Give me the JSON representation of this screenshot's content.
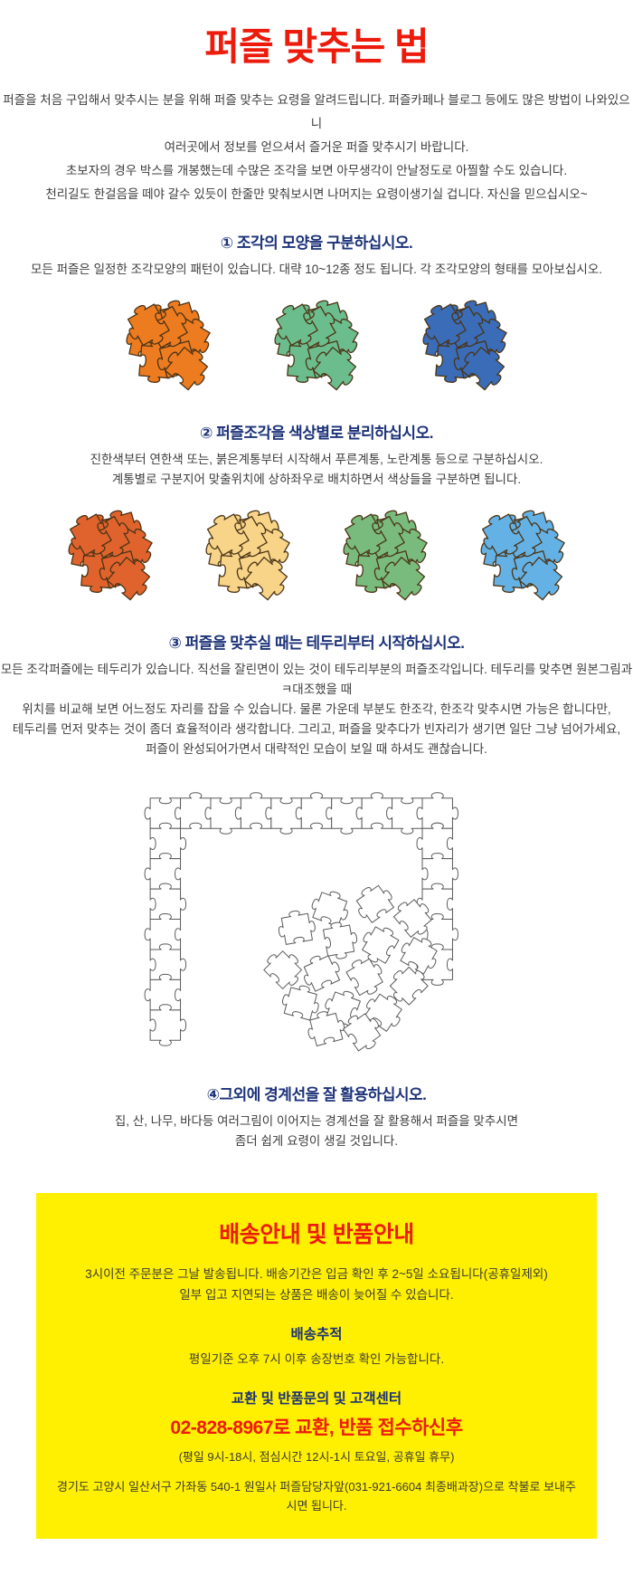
{
  "page": {
    "title": "퍼즐 맞추는 법"
  },
  "colors": {
    "title_red": "#ed1b0c",
    "heading_navy": "#1c3278",
    "body_text": "#3c3c3c",
    "notice_bg": "#ffef00",
    "notice_red": "#ed1b0c",
    "piece_outline": "#4a3416",
    "lineart_stroke": "#5a5a5a"
  },
  "intro": {
    "lines": [
      "퍼즐을 처음 구입해서 맞추시는 분을 위해 퍼즐 맞추는 요령을 알려드립니다. 퍼즐카페나 블로그 등에도 많은 방법이 나와있으니",
      "여러곳에서 정보를 얻으셔서 즐거운 퍼즐 맞추시기 바랍니다.",
      "초보자의 경우 박스를 개봉했는데 수많은 조각을 보면 아무생각이 안날정도로 아찔할 수도 있습니다.",
      "천리길도 한걸음을 떼야 갈수 있듯이 한줄만 맞춰보시면 나머지는 요령이생기실 겁니다. 자신을 믿으십시오~"
    ]
  },
  "sections": [
    {
      "heading": "① 조각의 모양을 구분하십시오.",
      "lines": [
        "모든 퍼즐은 일정한 조각모양의 패턴이 있습니다. 대략 10~12종 정도 됩니다. 각 조각모양의 형태를 모아보십시오."
      ]
    },
    {
      "heading": "② 퍼즐조각을 색상별로 분리하십시오.",
      "lines": [
        "진한색부터 연한색 또는, 붉은계통부터 시작해서 푸른계통, 노란계통 등으로 구분하십시오.",
        "계통별로 구분지어 맞출위치에 상하좌우로 배치하면서 색상들을 구분하면 됩니다."
      ]
    },
    {
      "heading": "③ 퍼즐을 맞추실 때는 테두리부터 시작하십시오.",
      "lines": [
        "모든 조각퍼즐에는 테두리가 있습니다. 직선을 잘린면이 있는 것이 테두리부분의 퍼즐조각입니다. 테두리를 맞추면 원본그림과 ㅋ대조했을 때",
        "위치를 비교해 보면 어느정도 자리를 잡을 수 있습니다. 물론 가운데 부분도 한조각, 한조각 맞추시면 가능은 합니다만,",
        "테두리를 먼저 맞추는 것이 좀더 효율적이라 생각합니다. 그리고, 퍼즐을 맞추다가 빈자리가 생기면 일단 그냥 넘어가세요,",
        "퍼즐이 완성되어가면서 대략적인 모습이 보일 때 하셔도 괜찮습니다."
      ]
    },
    {
      "heading": "④그외에 경계선을 잘 활용하십시오.",
      "lines": [
        "집, 산, 나무, 바다등 여러그림이 이어지는 경계선을 잘 활용해서 퍼즐을 맞추시면",
        "좀더 쉽게 요령이 생길 것입니다."
      ]
    }
  ],
  "illustrations": {
    "shape_clusters": {
      "icon": "puzzle-pieces-cluster",
      "colors": [
        "#ed7b20",
        "#6cbd8d",
        "#3a6cb8"
      ]
    },
    "color_clusters": {
      "icon": "puzzle-pieces-cluster",
      "colors": [
        "#e0632d",
        "#f8d489",
        "#79bb7c",
        "#64b2e5"
      ]
    },
    "border_frame": {
      "icon": "puzzle-border-frame-with-scattered-pieces"
    }
  },
  "notice": {
    "title": "배송안내 및 반품안내",
    "shipping_lines": [
      "3시이전 주문분은 그날 발송됩니다. 배송기간은 입금 확인 후 2~5일 소요됩니다(공휴일제외)",
      "일부 입고 지연되는 상품은 배송이 늦어질 수 있습니다."
    ],
    "tracking_heading": "배송추적",
    "tracking_line": "평일기준 오후 7시 이후 송장번호 확인 가능합니다.",
    "contact_heading": "교환 및 반품문의 및 고객센터",
    "phone_line": "02-828-8967로 교환, 반품 접수하신후",
    "hours_line": "(평일 9시-18시, 점심시간 12시-1시 토요일, 공휴일 휴무)",
    "address_line": "경기도 고양시 일산서구 가좌동 540-1 원일사 퍼즐담당자앞(031-921-6604 최종배과장)으로 착불로 보내주시면 됩니다."
  }
}
